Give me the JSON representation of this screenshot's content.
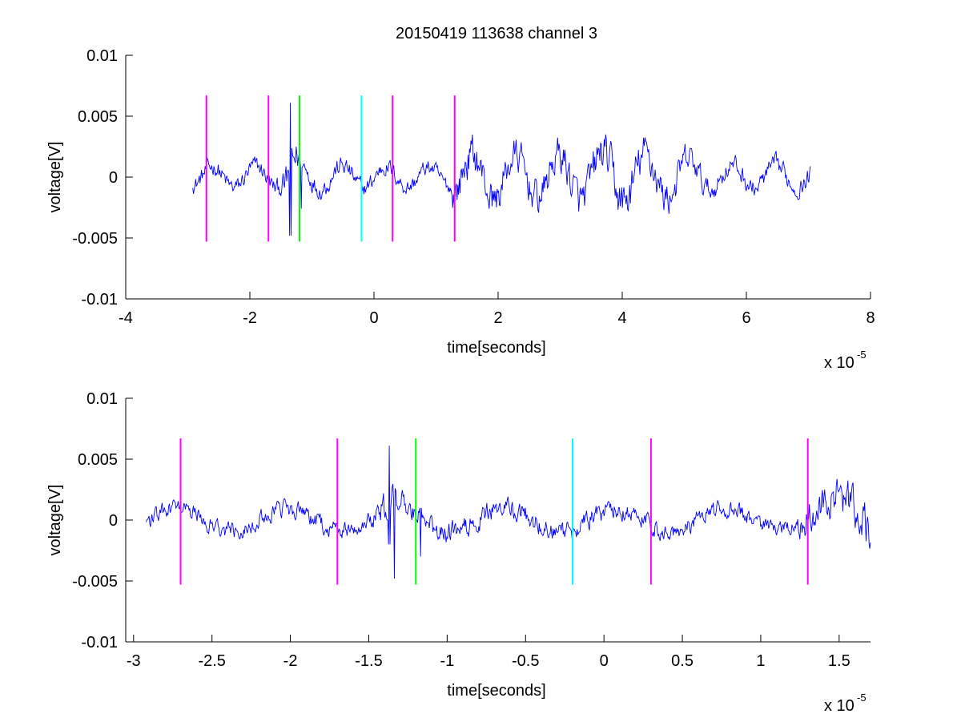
{
  "figure": {
    "title": "20150419 113638 channel 3"
  },
  "chart_data": [
    {
      "type": "line",
      "title": "20150419 113638 channel 3",
      "xlabel": "time[seconds]",
      "ylabel": "voltage[V]",
      "x_multiplier_label": "x 10",
      "x_multiplier_exponent": "-5",
      "xlim": [
        -4,
        8
      ],
      "ylim": [
        -0.01,
        0.01
      ],
      "x_ticks": [
        -4,
        -2,
        0,
        2,
        4,
        6,
        8
      ],
      "x_tick_labels": [
        "-4",
        "-2",
        "0",
        "2",
        "4",
        "6",
        "8"
      ],
      "y_ticks": [
        -0.01,
        -0.005,
        0,
        0.005,
        0.01
      ],
      "y_tick_labels": [
        "-0.01",
        "-0.005",
        "0",
        "0.005",
        "0.01"
      ],
      "grid": false,
      "series": [
        {
          "color": "#0000ff",
          "x_range": [
            -2.92,
            7.03
          ],
          "envelope": [
            {
              "x": -2.92,
              "amp": 0.0011
            },
            {
              "x": -1.5,
              "amp": 0.0012
            },
            {
              "x": -1.35,
              "amp": 0.003
            },
            {
              "x": -1.1,
              "amp": 0.0013
            },
            {
              "x": 1.2,
              "amp": 0.001
            },
            {
              "x": 1.3,
              "amp": 0.0025
            },
            {
              "x": 2.6,
              "amp": 0.0022
            },
            {
              "x": 4.0,
              "amp": 0.0028
            },
            {
              "x": 5.0,
              "amp": 0.002
            },
            {
              "x": 5.5,
              "amp": 0.0013
            },
            {
              "x": 7.03,
              "amp": 0.0012
            }
          ],
          "spikes": [
            {
              "x": -1.35,
              "min": -0.0048,
              "max": 0.0061
            },
            {
              "x": -1.17,
              "min": -0.0026,
              "max": 0.0008
            }
          ]
        }
      ],
      "markers": [
        {
          "x": -2.7,
          "color": "#ff00ff",
          "y_range": [
            -0.0053,
            0.0067
          ]
        },
        {
          "x": -1.7,
          "color": "#ff00ff",
          "y_range": [
            -0.0053,
            0.0067
          ]
        },
        {
          "x": -1.2,
          "color": "#00ff00",
          "y_range": [
            -0.0053,
            0.0067
          ]
        },
        {
          "x": -0.2,
          "color": "#00ffff",
          "y_range": [
            -0.0053,
            0.0067
          ]
        },
        {
          "x": 0.3,
          "color": "#ff00ff",
          "y_range": [
            -0.0053,
            0.0067
          ]
        },
        {
          "x": 1.3,
          "color": "#ff00ff",
          "y_range": [
            -0.0053,
            0.0067
          ]
        }
      ]
    },
    {
      "type": "line",
      "xlabel": "time[seconds]",
      "ylabel": "voltage[V]",
      "x_multiplier_label": "x 10",
      "x_multiplier_exponent": "-5",
      "xlim": [
        -3.05,
        1.7
      ],
      "ylim": [
        -0.01,
        0.01
      ],
      "x_ticks": [
        -3,
        -2.5,
        -2,
        -1.5,
        -1,
        -0.5,
        0,
        0.5,
        1,
        1.5
      ],
      "x_tick_labels": [
        "-3",
        "-2.5",
        "-2",
        "-1.5",
        "-1",
        "-0.5",
        "0",
        "0.5",
        "1",
        "1.5"
      ],
      "y_ticks": [
        -0.01,
        -0.005,
        0,
        0.005,
        0.01
      ],
      "y_tick_labels": [
        "-0.01",
        "-0.005",
        "0",
        "0.005",
        "0.01"
      ],
      "grid": false,
      "series": [
        {
          "color": "#0000ff",
          "x_range": [
            -2.92,
            1.7
          ],
          "envelope": [
            {
              "x": -2.92,
              "amp": 0.0011
            },
            {
              "x": -1.5,
              "amp": 0.0011
            },
            {
              "x": -1.4,
              "amp": 0.0022
            },
            {
              "x": -1.2,
              "amp": 0.0015
            },
            {
              "x": -0.9,
              "amp": 0.0014
            },
            {
              "x": 1.2,
              "amp": 0.001
            },
            {
              "x": 1.3,
              "amp": 0.0022
            },
            {
              "x": 1.7,
              "amp": 0.0028
            }
          ],
          "spikes": [
            {
              "x": -1.37,
              "min": -0.002,
              "max": 0.0061
            },
            {
              "x": -1.34,
              "min": -0.0048,
              "max": 0.0015
            },
            {
              "x": -1.17,
              "min": -0.003,
              "max": 0.001
            }
          ]
        }
      ],
      "markers": [
        {
          "x": -2.7,
          "color": "#ff00ff",
          "y_range": [
            -0.0053,
            0.0067
          ]
        },
        {
          "x": -1.7,
          "color": "#ff00ff",
          "y_range": [
            -0.0053,
            0.0067
          ]
        },
        {
          "x": -1.2,
          "color": "#00ff00",
          "y_range": [
            -0.0053,
            0.0067
          ]
        },
        {
          "x": -0.2,
          "color": "#00ffff",
          "y_range": [
            -0.0053,
            0.0067
          ]
        },
        {
          "x": 0.3,
          "color": "#ff00ff",
          "y_range": [
            -0.0053,
            0.0067
          ]
        },
        {
          "x": 1.3,
          "color": "#ff00ff",
          "y_range": [
            -0.0053,
            0.0067
          ]
        }
      ]
    }
  ]
}
